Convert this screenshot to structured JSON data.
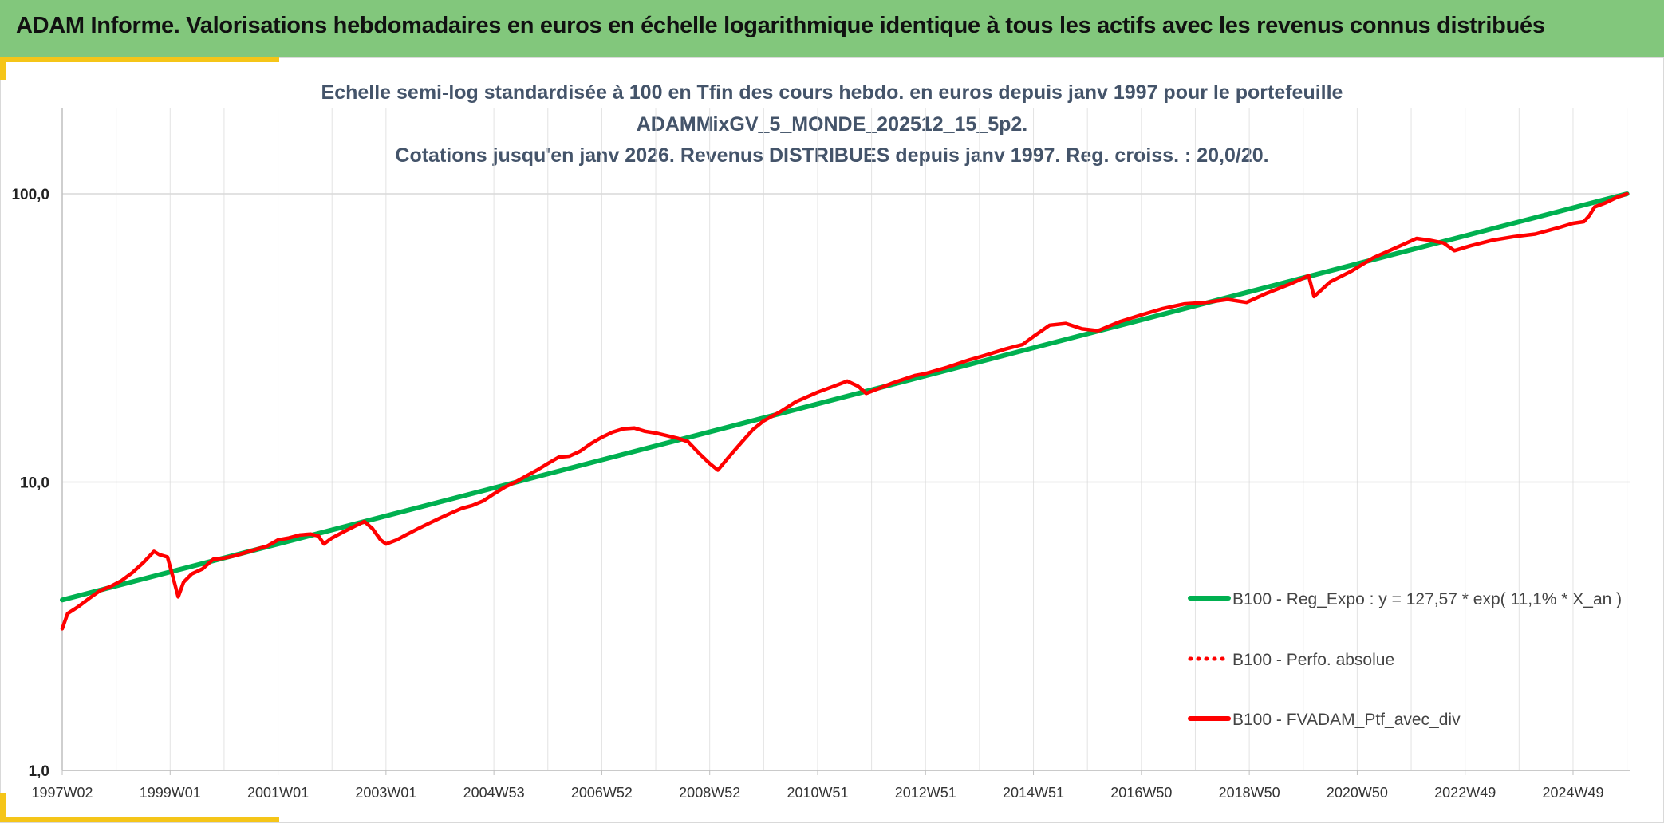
{
  "header": {
    "title": "ADAM Informe. Valorisations hebdomadaires en euros en échelle logarithmique identique à tous les actifs avec les revenus connus distribués"
  },
  "colors": {
    "header_bg": "#82c77c",
    "accent": "#f5c518",
    "regression": "#00b050",
    "portfolio": "#ff0000",
    "title_text": "#44546a"
  },
  "chart_data": {
    "type": "line",
    "title_lines": [
      "Echelle semi-log standardisée à 100 en Tfin des cours hebdo. en euros depuis janv 1997 pour le portefeuille",
      "ADAMMixGV_5_MONDE_202512_15_5p2.",
      "Cotations jusqu'en janv 2026. Revenus DISTRIBUES depuis janv 1997. Reg. croiss. : 20,0/20."
    ],
    "y_scale": "log",
    "ylim": [
      1,
      100
    ],
    "yticks": [
      {
        "value": 1,
        "label": "1,0"
      },
      {
        "value": 10,
        "label": "10,0"
      },
      {
        "value": 100,
        "label": "100,0"
      }
    ],
    "xlim": [
      1997.0,
      2026.05
    ],
    "xticks": [
      {
        "x": 1997.0,
        "label": "1997W02"
      },
      {
        "x": 1999.0,
        "label": "1999W01"
      },
      {
        "x": 2001.0,
        "label": "2001W01"
      },
      {
        "x": 2003.0,
        "label": "2003W01"
      },
      {
        "x": 2005.0,
        "label": "2004W53"
      },
      {
        "x": 2007.0,
        "label": "2006W52"
      },
      {
        "x": 2009.0,
        "label": "2008W52"
      },
      {
        "x": 2011.0,
        "label": "2010W51"
      },
      {
        "x": 2013.0,
        "label": "2012W51"
      },
      {
        "x": 2015.0,
        "label": "2014W51"
      },
      {
        "x": 2017.0,
        "label": "2016W50"
      },
      {
        "x": 2019.0,
        "label": "2018W50"
      },
      {
        "x": 2021.0,
        "label": "2020W50"
      },
      {
        "x": 2023.0,
        "label": "2022W49"
      },
      {
        "x": 2025.0,
        "label": "2024W49"
      }
    ],
    "vertical_grid": true,
    "legend_position": "bottom-right",
    "series": [
      {
        "name": "B100 - Reg_Expo : y = 127,57 * exp( 11,1% *  X_an )",
        "style": "solid",
        "color": "#00b050",
        "points": [
          [
            1997.0,
            3.9
          ],
          [
            2026.0,
            100.0
          ]
        ]
      },
      {
        "name": "B100 - Perfo. absolue",
        "style": "dotted",
        "color": "#ff0000",
        "points": []
      },
      {
        "name": "B100 - FVADAM_Ptf_avec_div",
        "style": "solid",
        "color": "#ff0000",
        "points": [
          [
            1997.0,
            3.1
          ],
          [
            1997.1,
            3.5
          ],
          [
            1997.3,
            3.7
          ],
          [
            1997.5,
            3.95
          ],
          [
            1997.7,
            4.2
          ],
          [
            1997.9,
            4.35
          ],
          [
            1998.1,
            4.55
          ],
          [
            1998.3,
            4.85
          ],
          [
            1998.5,
            5.25
          ],
          [
            1998.7,
            5.75
          ],
          [
            1998.8,
            5.6
          ],
          [
            1998.95,
            5.5
          ],
          [
            1999.05,
            4.7
          ],
          [
            1999.15,
            4.0
          ],
          [
            1999.25,
            4.5
          ],
          [
            1999.4,
            4.8
          ],
          [
            1999.6,
            5.0
          ],
          [
            1999.8,
            5.4
          ],
          [
            2000.0,
            5.45
          ],
          [
            2000.2,
            5.55
          ],
          [
            2000.4,
            5.7
          ],
          [
            2000.6,
            5.85
          ],
          [
            2000.8,
            6.0
          ],
          [
            2001.0,
            6.3
          ],
          [
            2001.2,
            6.4
          ],
          [
            2001.4,
            6.55
          ],
          [
            2001.6,
            6.6
          ],
          [
            2001.75,
            6.5
          ],
          [
            2001.85,
            6.1
          ],
          [
            2002.0,
            6.4
          ],
          [
            2002.2,
            6.7
          ],
          [
            2002.4,
            7.0
          ],
          [
            2002.6,
            7.3
          ],
          [
            2002.75,
            6.9
          ],
          [
            2002.9,
            6.3
          ],
          [
            2003.0,
            6.1
          ],
          [
            2003.2,
            6.3
          ],
          [
            2003.4,
            6.6
          ],
          [
            2003.6,
            6.9
          ],
          [
            2003.8,
            7.2
          ],
          [
            2004.0,
            7.5
          ],
          [
            2004.2,
            7.8
          ],
          [
            2004.4,
            8.1
          ],
          [
            2004.6,
            8.3
          ],
          [
            2004.8,
            8.6
          ],
          [
            2005.0,
            9.1
          ],
          [
            2005.2,
            9.6
          ],
          [
            2005.4,
            10.0
          ],
          [
            2005.6,
            10.5
          ],
          [
            2005.8,
            11.0
          ],
          [
            2006.0,
            11.6
          ],
          [
            2006.2,
            12.2
          ],
          [
            2006.4,
            12.3
          ],
          [
            2006.6,
            12.8
          ],
          [
            2006.8,
            13.6
          ],
          [
            2007.0,
            14.3
          ],
          [
            2007.2,
            14.9
          ],
          [
            2007.4,
            15.3
          ],
          [
            2007.6,
            15.4
          ],
          [
            2007.8,
            15.0
          ],
          [
            2008.0,
            14.8
          ],
          [
            2008.2,
            14.5
          ],
          [
            2008.4,
            14.2
          ],
          [
            2008.6,
            13.8
          ],
          [
            2008.8,
            12.6
          ],
          [
            2009.0,
            11.6
          ],
          [
            2009.15,
            11.0
          ],
          [
            2009.35,
            12.2
          ],
          [
            2009.6,
            13.8
          ],
          [
            2009.8,
            15.2
          ],
          [
            2010.0,
            16.3
          ],
          [
            2010.3,
            17.5
          ],
          [
            2010.6,
            19.0
          ],
          [
            2011.0,
            20.5
          ],
          [
            2011.3,
            21.5
          ],
          [
            2011.55,
            22.4
          ],
          [
            2011.75,
            21.5
          ],
          [
            2011.9,
            20.3
          ],
          [
            2012.1,
            21.0
          ],
          [
            2012.4,
            22.1
          ],
          [
            2012.8,
            23.4
          ],
          [
            2013.0,
            23.8
          ],
          [
            2013.4,
            25.0
          ],
          [
            2013.8,
            26.5
          ],
          [
            2014.1,
            27.5
          ],
          [
            2014.5,
            29.0
          ],
          [
            2014.8,
            30.0
          ],
          [
            2015.0,
            32.0
          ],
          [
            2015.3,
            35.0
          ],
          [
            2015.6,
            35.5
          ],
          [
            2015.9,
            34.0
          ],
          [
            2016.2,
            33.5
          ],
          [
            2016.6,
            36.0
          ],
          [
            2017.0,
            38.0
          ],
          [
            2017.4,
            40.0
          ],
          [
            2017.8,
            41.5
          ],
          [
            2018.2,
            42.0
          ],
          [
            2018.6,
            43.0
          ],
          [
            2018.95,
            42.0
          ],
          [
            2019.3,
            45.0
          ],
          [
            2019.8,
            49.0
          ],
          [
            2020.1,
            52.0
          ],
          [
            2020.2,
            44.0
          ],
          [
            2020.5,
            49.5
          ],
          [
            2020.9,
            54.0
          ],
          [
            2021.3,
            60.0
          ],
          [
            2021.8,
            66.0
          ],
          [
            2022.1,
            70.0
          ],
          [
            2022.35,
            69.0
          ],
          [
            2022.6,
            67.5
          ],
          [
            2022.8,
            63.5
          ],
          [
            2023.1,
            66.0
          ],
          [
            2023.5,
            69.0
          ],
          [
            2023.9,
            71.0
          ],
          [
            2024.3,
            72.5
          ],
          [
            2024.7,
            76.0
          ],
          [
            2025.0,
            79.0
          ],
          [
            2025.2,
            80.0
          ],
          [
            2025.3,
            84.0
          ],
          [
            2025.4,
            90.0
          ],
          [
            2025.6,
            93.0
          ],
          [
            2025.8,
            97.0
          ],
          [
            2026.0,
            100.0
          ]
        ]
      }
    ]
  }
}
